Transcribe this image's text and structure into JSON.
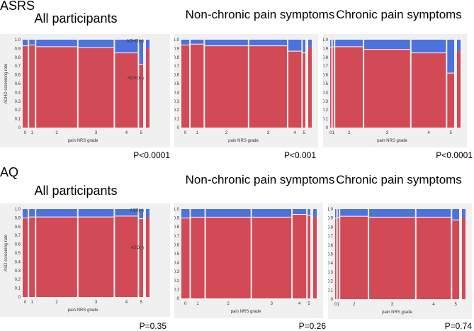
{
  "sections": [
    {
      "label": "ASRS"
    },
    {
      "label": "AQ"
    }
  ],
  "colors": {
    "negative": "#d24a55",
    "positive": "#4c72de",
    "panel": "#f0f0f0",
    "divider": "#ffffff"
  },
  "chart_data": [
    {
      "type": "mosaic",
      "section": "ASRS",
      "title": "All participants",
      "pvalue": "P<0.0001",
      "xlabel": "pain NRS grade",
      "ylabel": "ADHD screening rate",
      "legend": {
        "positive": "ADHD(+)",
        "negative": "ADHD(-)"
      },
      "yticks": [
        "0",
        "0.1",
        "0.2",
        "0.3",
        "0.4",
        "0.5",
        "0.6",
        "0.7",
        "0.8",
        "0.9",
        "1.0"
      ],
      "categories": [
        "0",
        "1",
        "2",
        "3",
        "4",
        "5"
      ],
      "widths": [
        0.045,
        0.05,
        0.36,
        0.31,
        0.2,
        0.035
      ],
      "negative_share": [
        0.93,
        0.94,
        0.92,
        0.91,
        0.85,
        0.72
      ],
      "overall_negative_share": 0.9
    },
    {
      "type": "mosaic",
      "section": "ASRS",
      "title": "Non-chronic pain symptoms",
      "pvalue": "P<0.001",
      "xlabel": "pain NRS grade",
      "ylabel": "",
      "legend": null,
      "yticks": [
        "0",
        "0.1",
        "0.2",
        "0.3",
        "0.4",
        "0.5",
        "0.6",
        "0.7",
        "0.8",
        "0.9",
        "1.0"
      ],
      "categories": [
        "0",
        "1",
        "2",
        "3",
        "4",
        "5"
      ],
      "widths": [
        0.06,
        0.1,
        0.33,
        0.29,
        0.1,
        0.02
      ],
      "negative_share": [
        0.94,
        0.95,
        0.93,
        0.93,
        0.87,
        0.85
      ],
      "overall_negative_share": 0.92
    },
    {
      "type": "mosaic",
      "section": "ASRS",
      "title": "Chronic pain symptoms",
      "pvalue": "P<0.0001",
      "xlabel": "pain NRS grade",
      "ylabel": "",
      "legend": null,
      "yticks": [
        "0",
        "0.1",
        "0.2",
        "0.3",
        "0.4",
        "0.5",
        "0.6",
        "0.7",
        "0.8",
        "0.9",
        "1.0"
      ],
      "categories": [
        "0",
        "1",
        "2",
        "3",
        "4",
        "5"
      ],
      "widths": [
        0.01,
        0.01,
        0.24,
        0.4,
        0.3,
        0.06
      ],
      "negative_share": [
        0.91,
        0.92,
        0.92,
        0.89,
        0.85,
        0.62
      ],
      "overall_negative_share": 0.87
    },
    {
      "type": "mosaic",
      "section": "AQ",
      "title": "All participants",
      "pvalue": "P=0.35",
      "xlabel": "pain NRS grade",
      "ylabel": "ASD screening rate",
      "legend": {
        "positive": "ASD(+)",
        "negative": "ASD(-)"
      },
      "yticks": [
        "0",
        "0.1",
        "0.2",
        "0.3",
        "0.4",
        "0.5",
        "0.6",
        "0.7",
        "0.8",
        "0.9",
        "1.0"
      ],
      "categories": [
        "0",
        "1",
        "2",
        "3",
        "4",
        "5"
      ],
      "widths": [
        0.045,
        0.05,
        0.36,
        0.31,
        0.2,
        0.035
      ],
      "negative_share": [
        0.9,
        0.91,
        0.91,
        0.91,
        0.92,
        0.89
      ],
      "overall_negative_share": 0.91
    },
    {
      "type": "mosaic",
      "section": "AQ",
      "title": "Non-chronic pain symptoms",
      "pvalue": "P=0.26",
      "xlabel": "pain NRS grade",
      "ylabel": "",
      "legend": null,
      "yticks": [
        "0",
        "0.1",
        "0.2",
        "0.3",
        "0.4",
        "0.5",
        "0.6",
        "0.7",
        "0.8",
        "0.9",
        "1.0"
      ],
      "categories": [
        "0",
        "1",
        "2",
        "3",
        "4",
        "5"
      ],
      "widths": [
        0.06,
        0.1,
        0.33,
        0.29,
        0.1,
        0.02
      ],
      "negative_share": [
        0.9,
        0.91,
        0.91,
        0.91,
        0.94,
        0.93
      ],
      "overall_negative_share": 0.91
    },
    {
      "type": "mosaic",
      "section": "AQ",
      "title": "Chronic pain symptoms",
      "pvalue": "P=0.74",
      "xlabel": "pain NRS grade",
      "ylabel": "",
      "legend": null,
      "yticks": [
        "0",
        "0.1",
        "0.2",
        "0.3",
        "0.4",
        "0.5",
        "0.6",
        "0.7",
        "0.8",
        "0.9",
        "1.0"
      ],
      "categories": [
        "0",
        "1",
        "2",
        "3",
        "4",
        "5"
      ],
      "widths": [
        0.01,
        0.01,
        0.24,
        0.4,
        0.3,
        0.06
      ],
      "negative_share": [
        0.9,
        0.91,
        0.92,
        0.91,
        0.91,
        0.88
      ],
      "overall_negative_share": 0.91
    }
  ]
}
